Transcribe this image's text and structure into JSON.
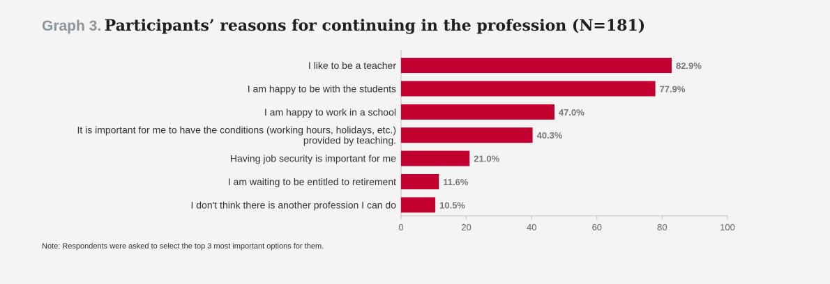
{
  "title_prefix": "Graph 3.",
  "title_main": "Participants’ reasons for continuing in the profession (N=181)",
  "note": "Note: Respondents were asked to select the top 3 most important options for them.",
  "colors": {
    "bar": "#c20030",
    "axis": "#bfbfbf",
    "label": "#333333",
    "value": "#777777"
  },
  "chart_data": {
    "type": "bar",
    "orientation": "horizontal",
    "categories": [
      [
        "I like to be a teacher"
      ],
      [
        "I am happy to be with the students"
      ],
      [
        "I am happy to work in a school"
      ],
      [
        "It is important for me to have the conditions (working hours, holidays, etc.)",
        "provided by teaching."
      ],
      [
        "Having job security is important for me"
      ],
      [
        "I am waiting to be entitled to retirement"
      ],
      [
        "I don't think there is another profession I can do"
      ]
    ],
    "values": [
      82.9,
      77.9,
      47.0,
      40.3,
      21.0,
      11.6,
      10.5
    ],
    "value_labels": [
      "82.9%",
      "77.9%",
      "47.0%",
      "40.3%",
      "21.0%",
      "11.6%",
      "10.5%"
    ],
    "xlim": [
      0,
      100
    ],
    "xticks": [
      0,
      20,
      40,
      60,
      80,
      100
    ],
    "xlabel": "",
    "ylabel": "",
    "grid": false,
    "legend": "none"
  }
}
